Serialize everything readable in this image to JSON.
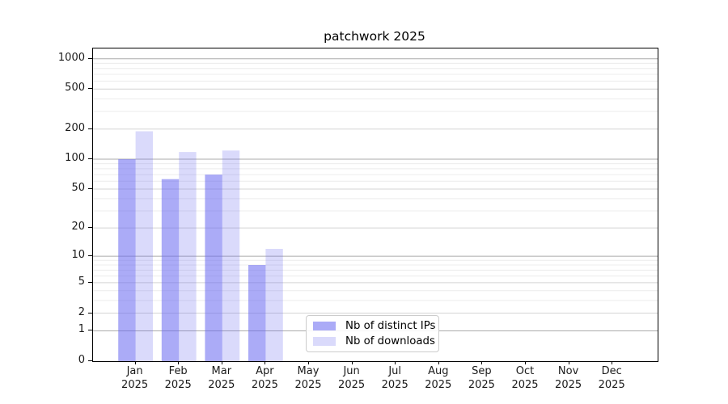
{
  "chart_data": {
    "type": "bar",
    "title": "patchwork 2025",
    "categories": [
      {
        "month": "Jan",
        "year": "2025"
      },
      {
        "month": "Feb",
        "year": "2025"
      },
      {
        "month": "Mar",
        "year": "2025"
      },
      {
        "month": "Apr",
        "year": "2025"
      },
      {
        "month": "May",
        "year": "2025"
      },
      {
        "month": "Jun",
        "year": "2025"
      },
      {
        "month": "Jul",
        "year": "2025"
      },
      {
        "month": "Aug",
        "year": "2025"
      },
      {
        "month": "Sep",
        "year": "2025"
      },
      {
        "month": "Oct",
        "year": "2025"
      },
      {
        "month": "Nov",
        "year": "2025"
      },
      {
        "month": "Dec",
        "year": "2025"
      }
    ],
    "series": [
      {
        "name": "Nb of distinct IPs",
        "color": "#6666f0",
        "alpha": 0.55,
        "values": [
          100,
          63,
          70,
          8,
          0,
          0,
          0,
          0,
          0,
          0,
          0,
          0
        ]
      },
      {
        "name": "Nb of downloads",
        "color": "#6666f0",
        "alpha": 0.24,
        "values": [
          190,
          118,
          122,
          12,
          0,
          0,
          0,
          0,
          0,
          0,
          0,
          0
        ]
      }
    ],
    "yscale": "log1p",
    "ylim": [
      0,
      1265
    ],
    "y_ticks": [
      0,
      1,
      2,
      5,
      10,
      20,
      50,
      100,
      200,
      500,
      1000
    ],
    "grid": true,
    "grid_major_values": [
      1,
      10,
      100,
      1000
    ],
    "legend_position": "lower center-right inside plot",
    "colors": {
      "grid_major": "#ababab",
      "grid_mid": "#d4d4d4",
      "grid_minor": "#ececec",
      "spine": "#000000",
      "text": "#1a1a1a"
    }
  }
}
